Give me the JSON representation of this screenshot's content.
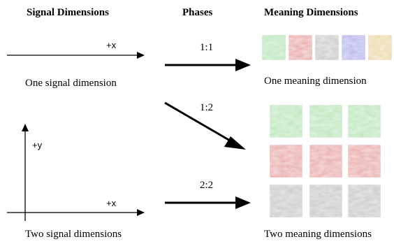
{
  "headers": {
    "signal": "Signal Dimensions",
    "phases": "Phases",
    "meaning": "Meaning Dimensions"
  },
  "captions": {
    "one_signal": "One signal dimension",
    "two_signal": "Two signal dimensions",
    "one_meaning": "One meaning dimension",
    "two_meaning": "Two meaning dimensions"
  },
  "axis_labels": {
    "top_x": "+x",
    "bottom_x": "+x",
    "bottom_y": "+y"
  },
  "phases": [
    {
      "ratio": "1:1"
    },
    {
      "ratio": "1:2"
    },
    {
      "ratio": "2:2"
    }
  ],
  "colors": {
    "green": "#b9e6b9",
    "red": "#eaa7a7",
    "gray": "#c9c9c9",
    "blue": "#b3b3ec",
    "yellow": "#ecd8a6",
    "ink": "#000000"
  },
  "one_meaning_swatches": [
    "green",
    "red",
    "gray",
    "blue",
    "yellow"
  ],
  "two_meaning_grid": [
    [
      "green",
      "green",
      "green"
    ],
    [
      "red",
      "red",
      "red"
    ],
    [
      "gray",
      "gray",
      "gray"
    ]
  ]
}
